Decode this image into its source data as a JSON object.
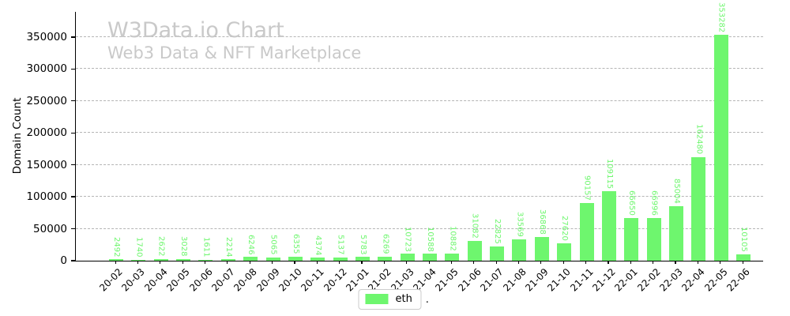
{
  "watermark": {
    "title": "W3Data.io Chart",
    "subtitle": "Web3 Data & NFT Marketplace"
  },
  "ylabel": "Domain Count",
  "legend": {
    "label": "eth",
    "suffix": ".",
    "swatch_color": "#6ef66e"
  },
  "colors": {
    "bar": "#6ef66e",
    "bar_value_label": "#6ef66e",
    "grid": "#b5b5b5",
    "watermark": "#c9c9c9",
    "axis": "#000000"
  },
  "chart_data": {
    "type": "bar",
    "title": "W3Data.io Chart",
    "subtitle": "Web3 Data & NFT Marketplace",
    "xlabel": "",
    "ylabel": "Domain Count",
    "categories": [
      "20-02",
      "20-03",
      "20-04",
      "20-05",
      "20-06",
      "20-07",
      "20-08",
      "20-09",
      "20-10",
      "20-11",
      "20-12",
      "21-01",
      "21-02",
      "21-03",
      "21-04",
      "21-05",
      "21-06",
      "21-07",
      "21-08",
      "21-09",
      "21-10",
      "21-11",
      "21-12",
      "22-01",
      "22-02",
      "22-03",
      "22-04",
      "22-05",
      "22-06"
    ],
    "series": [
      {
        "name": "eth",
        "values": [
          2492,
          1740,
          2622,
          3028,
          1611,
          2214,
          6246,
          5065,
          6355,
          4374,
          5137,
          5783,
          6269,
          10723,
          10588,
          10882,
          31082,
          22825,
          33569,
          36868,
          27620,
          90157,
          109115,
          66650,
          66996,
          85004,
          162480,
          353282,
          10105
        ]
      }
    ],
    "yticks": [
      0,
      50000,
      100000,
      150000,
      200000,
      250000,
      300000,
      350000
    ],
    "ylim": [
      0,
      389000
    ],
    "grid": true,
    "grid_style": "dashed",
    "legend_position": "bottom-center",
    "bar_value_labels_rotated": true,
    "xtick_rotation": 45
  }
}
